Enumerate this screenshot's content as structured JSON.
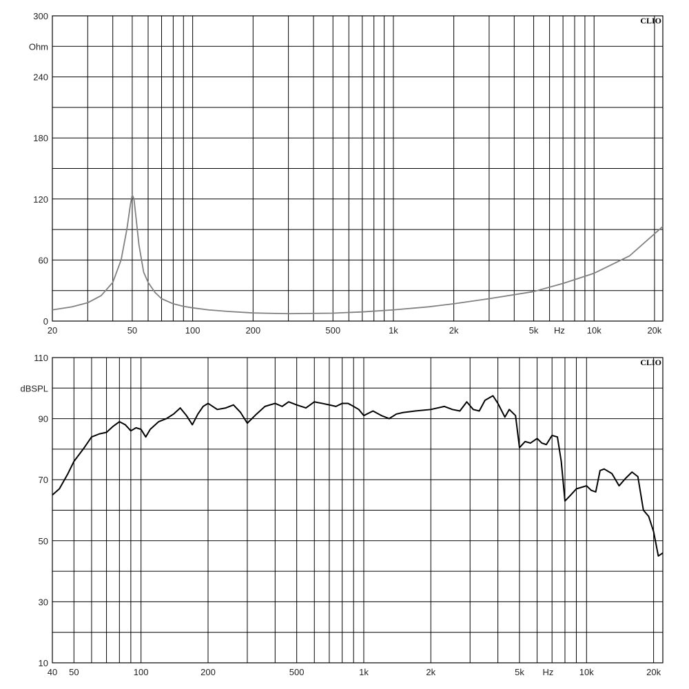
{
  "chart_data": [
    {
      "type": "line",
      "name": "impedance",
      "brand": "CLIO",
      "y_unit": "Ohm",
      "x_unit": "Hz",
      "x_scale": "log",
      "xlim": [
        20,
        22000
      ],
      "ylim": [
        0,
        300
      ],
      "y_ticks": [
        "0",
        "60",
        "120",
        "180",
        "240",
        "300"
      ],
      "x_ticks": [
        {
          "v": 20,
          "label": "20"
        },
        {
          "v": 50,
          "label": "50"
        },
        {
          "v": 100,
          "label": "100"
        },
        {
          "v": 200,
          "label": "200"
        },
        {
          "v": 500,
          "label": "500"
        },
        {
          "v": 1000,
          "label": "1k"
        },
        {
          "v": 2000,
          "label": "2k"
        },
        {
          "v": 5000,
          "label": "5k"
        },
        {
          "v": 10000,
          "label": "10k"
        },
        {
          "v": 20000,
          "label": "20k"
        }
      ],
      "y_grid_step": 30,
      "grid": true,
      "line_color": "#808080",
      "series": [
        {
          "x": [
            20,
            25,
            30,
            35,
            40,
            44,
            47,
            49,
            50,
            51,
            52,
            54,
            57,
            60,
            65,
            70,
            80,
            90,
            100,
            120,
            150,
            200,
            300,
            500,
            700,
            1000,
            1500,
            2000,
            3000,
            5000,
            7000,
            10000,
            15000,
            22000
          ],
          "y": [
            11,
            14,
            18,
            25,
            38,
            60,
            90,
            115,
            124,
            120,
            105,
            75,
            48,
            38,
            28,
            22,
            17,
            14.5,
            13,
            11,
            9.5,
            8,
            7.3,
            7.8,
            9,
            11,
            14,
            17,
            22,
            29,
            37,
            47,
            64,
            93
          ]
        }
      ]
    },
    {
      "type": "line",
      "name": "frequency-response",
      "brand": "CLIO",
      "y_unit": "dBSPL",
      "x_unit": "Hz",
      "x_scale": "log",
      "xlim": [
        40,
        22000
      ],
      "ylim": [
        10,
        110
      ],
      "y_ticks": [
        "10",
        "30",
        "50",
        "70",
        "90",
        "110"
      ],
      "x_ticks": [
        {
          "v": 40,
          "label": "40"
        },
        {
          "v": 50,
          "label": "50"
        },
        {
          "v": 100,
          "label": "100"
        },
        {
          "v": 200,
          "label": "200"
        },
        {
          "v": 500,
          "label": "500"
        },
        {
          "v": 1000,
          "label": "1k"
        },
        {
          "v": 2000,
          "label": "2k"
        },
        {
          "v": 5000,
          "label": "5k"
        },
        {
          "v": 10000,
          "label": "10k"
        },
        {
          "v": 20000,
          "label": "20k"
        }
      ],
      "y_grid_step": 10,
      "grid": true,
      "line_color": "#000000",
      "series": [
        {
          "x": [
            40,
            43,
            47,
            50,
            55,
            60,
            65,
            70,
            75,
            80,
            85,
            90,
            95,
            100,
            105,
            110,
            120,
            130,
            140,
            150,
            160,
            170,
            180,
            190,
            200,
            220,
            240,
            260,
            280,
            300,
            330,
            360,
            400,
            430,
            460,
            500,
            550,
            600,
            650,
            700,
            750,
            800,
            850,
            900,
            950,
            1000,
            1100,
            1200,
            1300,
            1400,
            1500,
            1700,
            2000,
            2300,
            2500,
            2700,
            2900,
            3100,
            3300,
            3500,
            3800,
            4000,
            4300,
            4500,
            4800,
            5000,
            5300,
            5600,
            6000,
            6300,
            6600,
            7000,
            7400,
            7700,
            8000,
            8500,
            9000,
            9500,
            10000,
            10500,
            11000,
            11500,
            12000,
            13000,
            14000,
            15000,
            16000,
            17000,
            18000,
            19000,
            20000,
            21000,
            22000
          ],
          "y": [
            65,
            67,
            72,
            76,
            80,
            84,
            85,
            85.5,
            87.5,
            89,
            88,
            86,
            87,
            86.5,
            84,
            86.5,
            89,
            90,
            91.5,
            93.5,
            91,
            88,
            91.5,
            94,
            95,
            93,
            93.5,
            94.5,
            92,
            88.5,
            91.5,
            94,
            95,
            94,
            95.5,
            94.5,
            93.5,
            95.5,
            95,
            94.5,
            94,
            95,
            95,
            94,
            93,
            91,
            92.5,
            91,
            90,
            91.5,
            92,
            92.5,
            93,
            94,
            93,
            92.5,
            95.5,
            93,
            92.5,
            96,
            97.5,
            95,
            90.5,
            93,
            91,
            80.5,
            82.5,
            82,
            83.5,
            82,
            81.5,
            84.5,
            84,
            76,
            63,
            65,
            67,
            67.5,
            68,
            66.5,
            66,
            73,
            73.5,
            72,
            68,
            70.5,
            72.5,
            71,
            60,
            58,
            53,
            45,
            46
          ]
        }
      ]
    }
  ]
}
